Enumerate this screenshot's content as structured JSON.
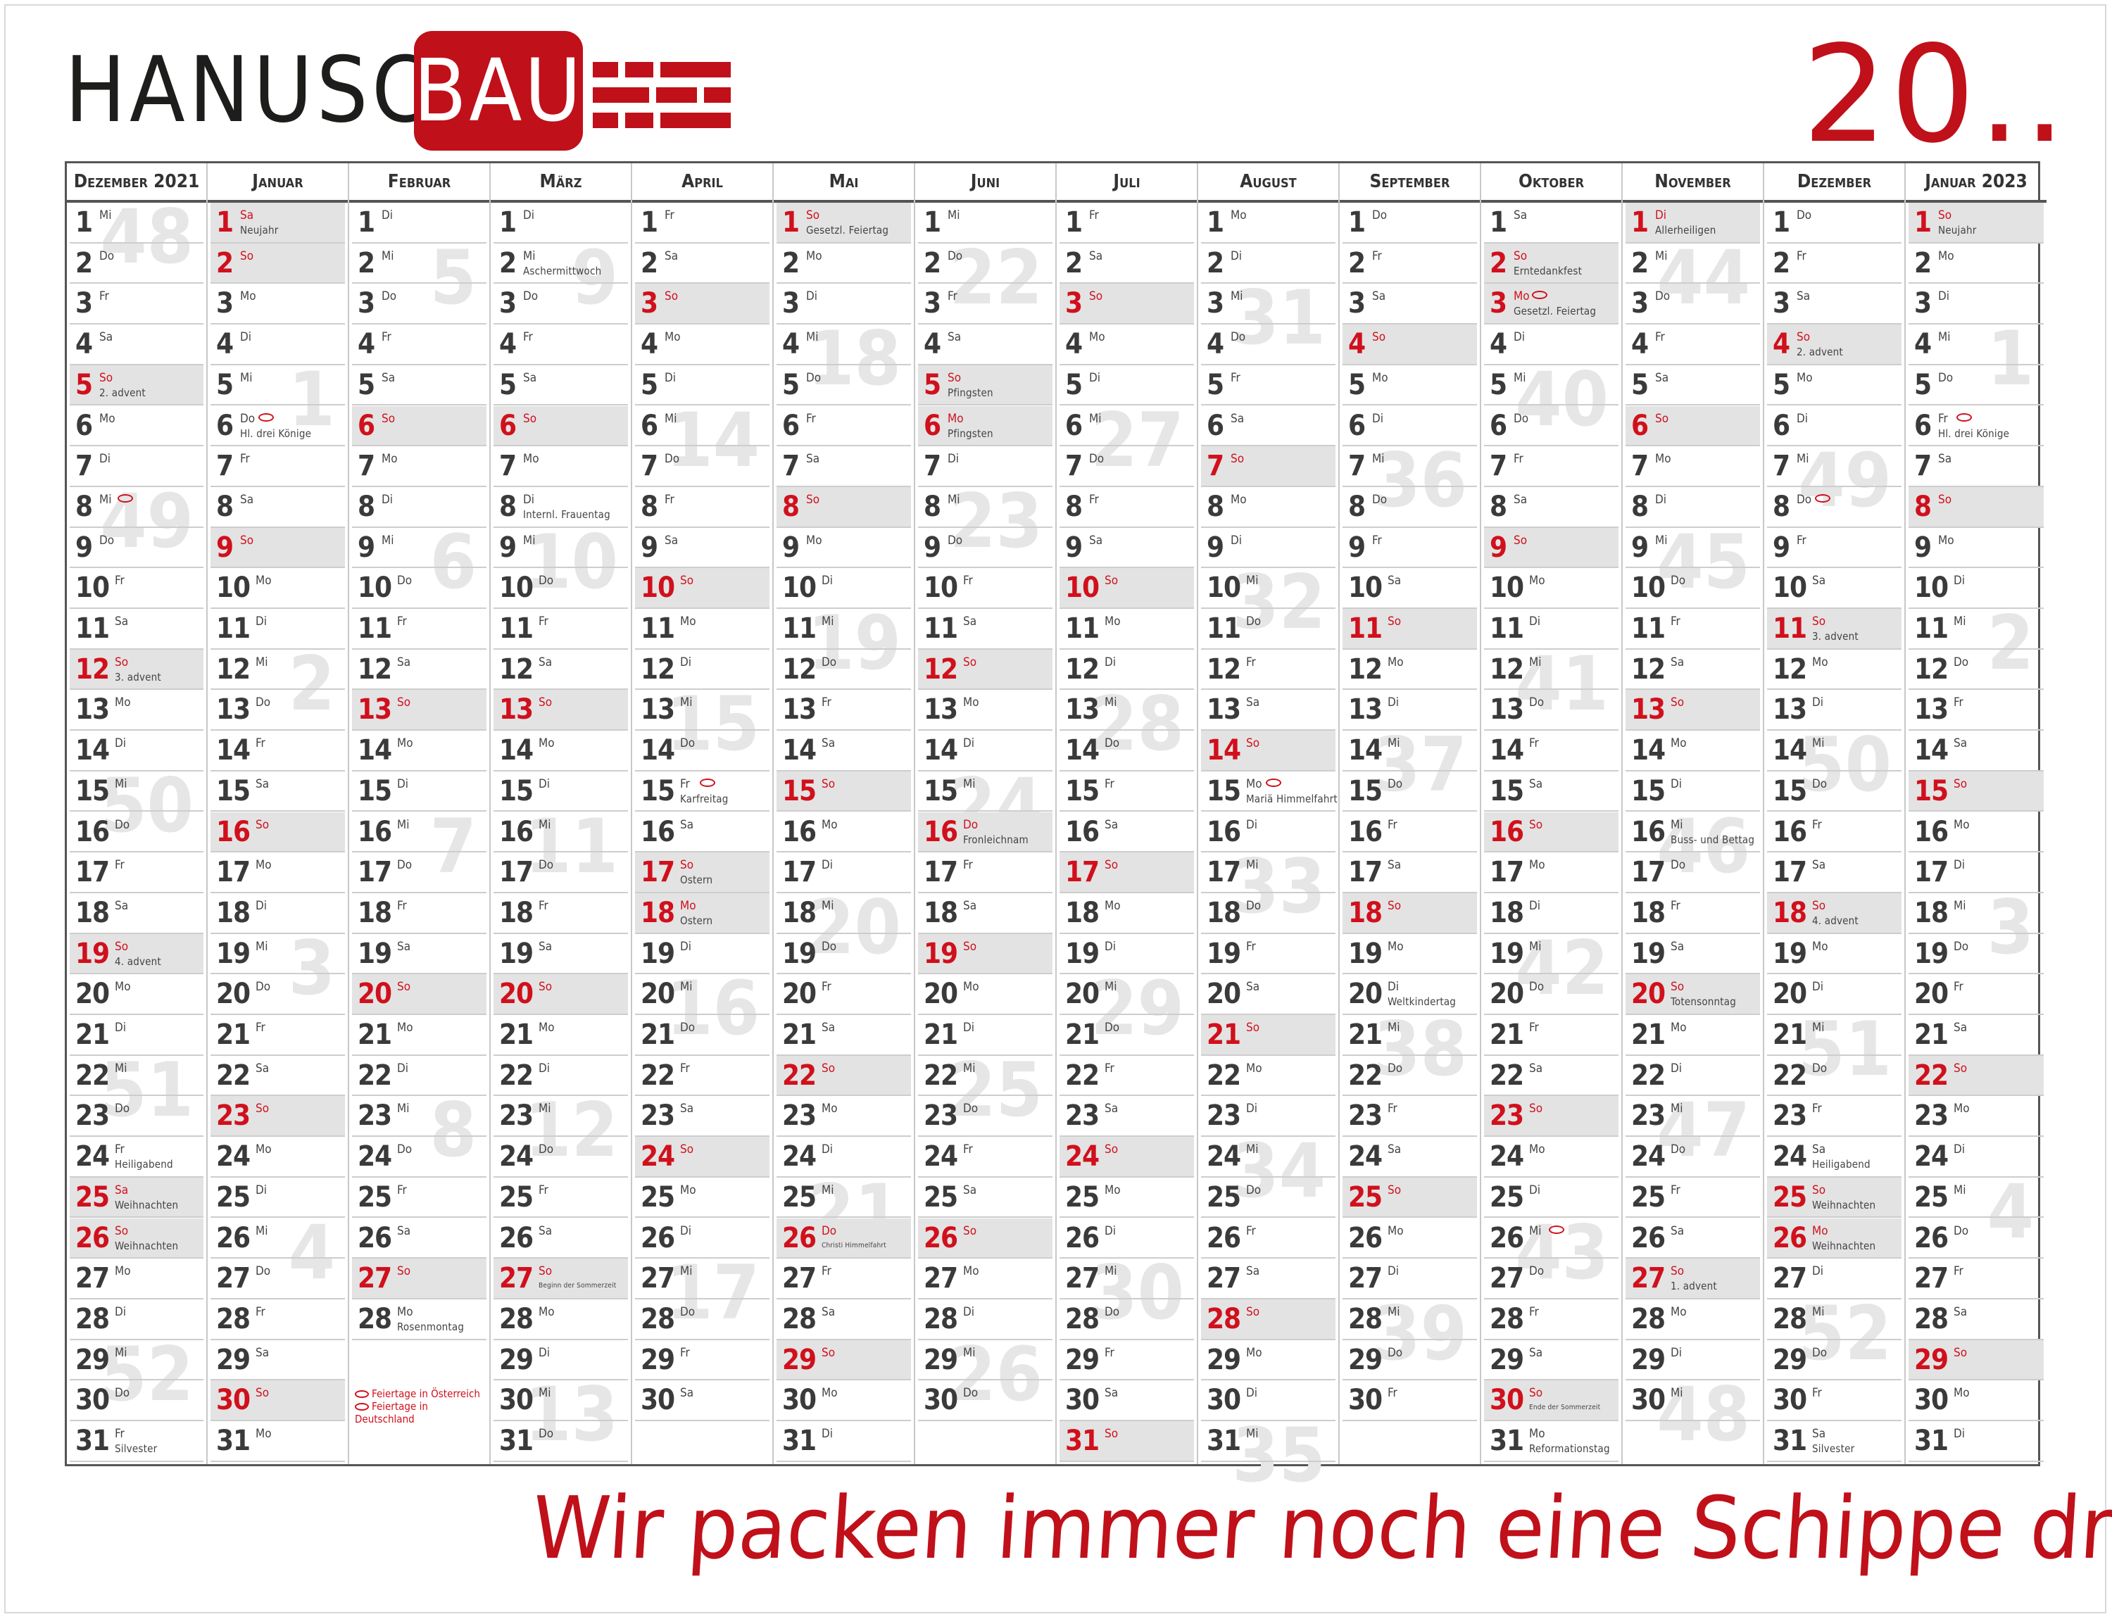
{
  "brand": {
    "name_dark": "HANUSCH",
    "name_box": "BAU",
    "brick_color": "#c0101a"
  },
  "year": "20..",
  "slogan": "Wir packen immer noch eine Schippe drauf.",
  "colors": {
    "accent": "#c0101a",
    "holiday_text": "#d0101c",
    "weekend_fill": "#e3e3e3",
    "week_number": "#e6e6e6"
  },
  "legend": [
    "Feiertage in Österreich",
    "Feiertage in Deutschland"
  ],
  "months": [
    {
      "title": "Dezember 2021",
      "start": "Mi",
      "days": 31,
      "events": {
        "5": "2. advent",
        "12": "3. advent",
        "19": "4. advent",
        "24": "Heiligabend",
        "25": "Weihnachten",
        "26": "Weihnachten",
        "31": "Silvester"
      },
      "holidays": [
        25,
        26
      ],
      "marks": [
        8
      ],
      "weeks": [
        {
          "n": "48",
          "day": 1
        },
        {
          "n": "49",
          "day": 8
        },
        {
          "n": "50",
          "day": 15
        },
        {
          "n": "51",
          "day": 22
        },
        {
          "n": "52",
          "day": 29
        }
      ]
    },
    {
      "title": "Januar",
      "start": "Sa",
      "days": 31,
      "events": {
        "1": "Neujahr",
        "6": "Hl. drei Könige"
      },
      "holidays": [
        1
      ],
      "marks": [
        6
      ],
      "weeks": [
        {
          "n": "1",
          "day": 5
        },
        {
          "n": "2",
          "day": 12
        },
        {
          "n": "3",
          "day": 19
        },
        {
          "n": "4",
          "day": 26
        }
      ]
    },
    {
      "title": "Februar",
      "start": "Di",
      "days": 28,
      "events": {
        "28": "Rosenmontag"
      },
      "holidays": [],
      "marks": [],
      "weeks": [
        {
          "n": "5",
          "day": 2
        },
        {
          "n": "6",
          "day": 9
        },
        {
          "n": "7",
          "day": 16
        },
        {
          "n": "8",
          "day": 23
        }
      ]
    },
    {
      "title": "März",
      "start": "Di",
      "days": 31,
      "events": {
        "2": "Aschermittwoch",
        "8": "Internl. Frauentag",
        "27": "Beginn der Sommerzeit"
      },
      "holidays": [],
      "marks": [],
      "weeks": [
        {
          "n": "9",
          "day": 2
        },
        {
          "n": "10",
          "day": 9
        },
        {
          "n": "11",
          "day": 16
        },
        {
          "n": "12",
          "day": 23
        },
        {
          "n": "13",
          "day": 30
        }
      ]
    },
    {
      "title": "April",
      "start": "Fr",
      "days": 30,
      "events": {
        "15": "Karfreitag",
        "17": "Ostern",
        "18": "Ostern"
      },
      "holidays": [
        17,
        18
      ],
      "marks": [
        15
      ],
      "weeks": [
        {
          "n": "14",
          "day": 6
        },
        {
          "n": "15",
          "day": 13
        },
        {
          "n": "16",
          "day": 20
        },
        {
          "n": "17",
          "day": 27
        }
      ]
    },
    {
      "title": "Mai",
      "start": "So",
      "days": 31,
      "events": {
        "1": "Gesetzl. Feiertag",
        "26": "Christi Himmelfahrt"
      },
      "holidays": [
        1,
        26
      ],
      "marks": [],
      "weeks": [
        {
          "n": "18",
          "day": 4
        },
        {
          "n": "19",
          "day": 11
        },
        {
          "n": "20",
          "day": 18
        },
        {
          "n": "21",
          "day": 25
        }
      ]
    },
    {
      "title": "Juni",
      "start": "Mi",
      "days": 30,
      "events": {
        "5": "Pfingsten",
        "6": "Pfingsten",
        "16": "Fronleichnam"
      },
      "holidays": [
        5,
        6,
        16
      ],
      "marks": [],
      "weeks": [
        {
          "n": "22",
          "day": 2
        },
        {
          "n": "23",
          "day": 8
        },
        {
          "n": "24",
          "day": 15
        },
        {
          "n": "25",
          "day": 22
        },
        {
          "n": "26",
          "day": 29
        }
      ]
    },
    {
      "title": "Juli",
      "start": "Fr",
      "days": 31,
      "events": {},
      "holidays": [],
      "marks": [],
      "weeks": [
        {
          "n": "27",
          "day": 6
        },
        {
          "n": "28",
          "day": 13
        },
        {
          "n": "29",
          "day": 20
        },
        {
          "n": "30",
          "day": 27
        }
      ]
    },
    {
      "title": "August",
      "start": "Mo",
      "days": 31,
      "events": {
        "15": "Mariä Himmelfahrt"
      },
      "holidays": [],
      "marks": [
        15
      ],
      "weeks": [
        {
          "n": "31",
          "day": 3
        },
        {
          "n": "32",
          "day": 10
        },
        {
          "n": "33",
          "day": 17
        },
        {
          "n": "34",
          "day": 24
        },
        {
          "n": "35",
          "day": 31
        }
      ]
    },
    {
      "title": "September",
      "start": "Do",
      "days": 30,
      "events": {
        "20": "Weltkindertag"
      },
      "holidays": [],
      "marks": [],
      "weeks": [
        {
          "n": "36",
          "day": 7
        },
        {
          "n": "37",
          "day": 14
        },
        {
          "n": "38",
          "day": 21
        },
        {
          "n": "39",
          "day": 28
        }
      ]
    },
    {
      "title": "Oktober",
      "start": "Sa",
      "days": 31,
      "events": {
        "2": "Erntedankfest",
        "3": "Gesetzl. Feiertag",
        "30": "Ende der Sommerzeit",
        "31": "Reformationstag"
      },
      "holidays": [
        3
      ],
      "marks": [
        3,
        26
      ],
      "weeks": [
        {
          "n": "40",
          "day": 5
        },
        {
          "n": "41",
          "day": 12
        },
        {
          "n": "42",
          "day": 19
        },
        {
          "n": "43",
          "day": 26
        }
      ]
    },
    {
      "title": "November",
      "start": "Di",
      "days": 30,
      "events": {
        "1": "Allerheiligen",
        "16": "Buss- und Bettag",
        "20": "Totensonntag",
        "27": "1. advent"
      },
      "holidays": [
        1
      ],
      "marks": [],
      "weeks": [
        {
          "n": "44",
          "day": 2
        },
        {
          "n": "45",
          "day": 9
        },
        {
          "n": "46",
          "day": 16
        },
        {
          "n": "47",
          "day": 23
        },
        {
          "n": "48",
          "day": 30
        }
      ]
    },
    {
      "title": "Dezember",
      "start": "Do",
      "days": 31,
      "events": {
        "4": "2. advent",
        "11": "3. advent",
        "18": "4. advent",
        "24": "Heiligabend",
        "25": "Weihnachten",
        "26": "Weihnachten",
        "31": "Silvester"
      },
      "holidays": [
        25,
        26
      ],
      "marks": [
        8
      ],
      "weeks": [
        {
          "n": "49",
          "day": 7
        },
        {
          "n": "50",
          "day": 14
        },
        {
          "n": "51",
          "day": 21
        },
        {
          "n": "52",
          "day": 28
        }
      ]
    },
    {
      "title": "Januar 2023",
      "start": "So",
      "days": 31,
      "events": {
        "1": "Neujahr",
        "6": "Hl. drei Könige"
      },
      "holidays": [
        1
      ],
      "marks": [
        6
      ],
      "weeks": [
        {
          "n": "1",
          "day": 4
        },
        {
          "n": "2",
          "day": 11
        },
        {
          "n": "3",
          "day": 18
        },
        {
          "n": "4",
          "day": 25
        }
      ]
    }
  ]
}
